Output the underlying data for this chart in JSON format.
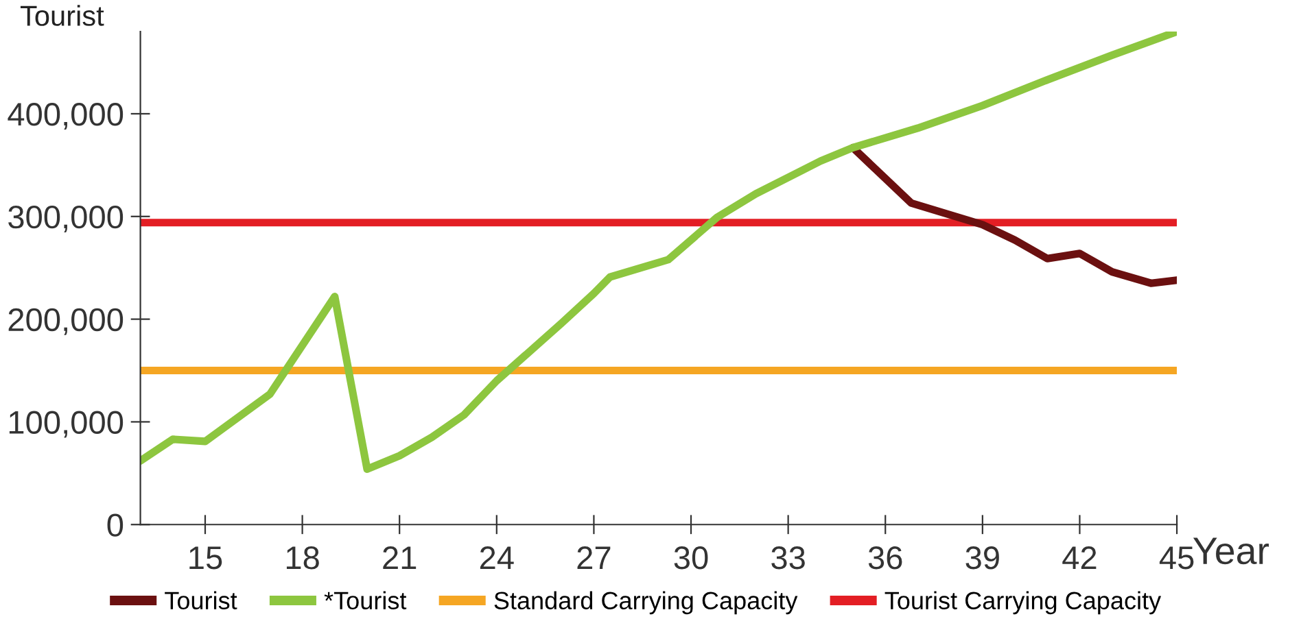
{
  "chart_data": {
    "type": "line",
    "xlabel": "Year",
    "ylabel": "Tourist",
    "xlim": [
      13,
      45
    ],
    "xticks": [
      15,
      18,
      21,
      24,
      27,
      30,
      33,
      36,
      39,
      42,
      45
    ],
    "ylim": [
      0,
      480000
    ],
    "yticks": [
      {
        "value": 0,
        "label": "0"
      },
      {
        "value": 100000,
        "label": "100,000"
      },
      {
        "value": 200000,
        "label": "200,000"
      },
      {
        "value": 300000,
        "label": "300,000"
      },
      {
        "value": 400000,
        "label": "400,000"
      }
    ],
    "series": [
      {
        "name": "Tourist",
        "color": "#6b1010",
        "x": [
          35,
          36.8,
          39,
          40,
          41,
          42,
          43,
          44.2,
          45
        ],
        "values": [
          367000,
          313000,
          292000,
          277000,
          259000,
          264000,
          246000,
          235000,
          238000
        ]
      },
      {
        "name": "*Tourist",
        "color": "#8dc63f",
        "x": [
          13,
          14,
          15,
          16,
          17,
          19,
          20,
          21,
          22,
          23,
          24,
          25,
          26,
          27,
          27.5,
          29.3,
          30.8,
          32,
          34,
          35,
          37,
          39,
          41,
          43,
          45
        ],
        "values": [
          62000,
          83000,
          81000,
          104000,
          127000,
          222000,
          54000,
          67000,
          85000,
          107000,
          140000,
          168000,
          196000,
          225000,
          241000,
          258000,
          299000,
          322000,
          354000,
          367000,
          386000,
          408000,
          433000,
          457000,
          480000
        ]
      }
    ],
    "ref_lines": [
      {
        "axis": "y",
        "value": 150000,
        "label": "Standard Carrying Capacity",
        "color": "#f5a623"
      },
      {
        "axis": "y",
        "value": 294000,
        "label": "Tourist Carrying Capacity",
        "color": "#e31e24"
      }
    ],
    "legend": "bottom",
    "grid": false,
    "marker": "none",
    "line_style": "solid"
  }
}
